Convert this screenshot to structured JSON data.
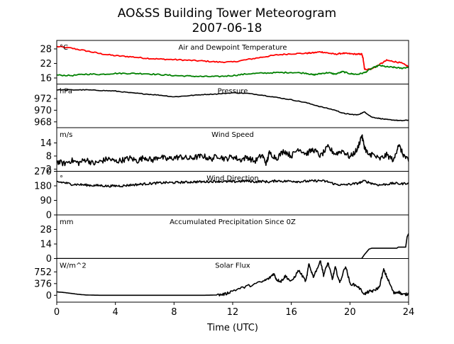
{
  "page": {
    "title_line1": "AO&SS Building Tower Meteorogram",
    "title_line2": "2007-06-18",
    "xlabel": "Time (UTC)"
  },
  "colors": {
    "temperature": "#ff0000",
    "dewpoint": "#008000",
    "line": "#000000",
    "axis": "#000000",
    "background": "#ffffff"
  },
  "chart_data": [
    {
      "type": "line",
      "title": "Air and Dewpoint Temperature",
      "unit": "°C",
      "xlim": [
        0,
        24
      ],
      "ylim": [
        13.5,
        31.5
      ],
      "yticks": [
        16,
        22,
        28
      ],
      "series": [
        {
          "color": "#ff0000",
          "x": [
            0,
            1,
            2,
            3,
            4,
            5,
            6,
            7,
            8,
            9,
            10,
            11,
            12,
            13,
            14,
            15,
            16,
            17,
            17.5,
            18,
            18.5,
            19,
            19.5,
            20,
            20.5,
            20.8,
            20.9,
            21.0,
            21.5,
            22,
            22.5,
            23,
            23.5,
            24
          ],
          "y": [
            29.0,
            28.3,
            27.2,
            26.0,
            25.2,
            24.8,
            24.2,
            23.8,
            23.6,
            23.3,
            23.0,
            22.6,
            22.6,
            23.6,
            24.6,
            25.5,
            26.0,
            26.2,
            26.4,
            26.8,
            26.3,
            25.8,
            26.2,
            26.0,
            25.8,
            25.9,
            24.0,
            19.5,
            19.8,
            21.5,
            23.3,
            22.8,
            22.2,
            20.7
          ]
        },
        {
          "color": "#008000",
          "x": [
            0,
            1,
            2,
            3,
            4,
            5,
            6,
            7,
            8,
            9,
            10,
            11,
            12,
            13,
            14,
            15,
            16,
            17,
            17.5,
            18,
            18.5,
            19,
            19.5,
            20,
            20.5,
            21,
            21.5,
            22,
            22.5,
            23,
            23.5,
            24
          ],
          "y": [
            17.2,
            17.0,
            17.6,
            17.5,
            17.9,
            17.9,
            17.8,
            17.4,
            17.0,
            16.8,
            16.6,
            16.6,
            17.0,
            17.7,
            18.0,
            18.2,
            18.3,
            18.0,
            17.3,
            17.8,
            18.2,
            17.6,
            18.6,
            17.8,
            17.5,
            18.2,
            20.0,
            21.2,
            20.6,
            20.4,
            20.0,
            20.5
          ]
        }
      ]
    },
    {
      "type": "line",
      "title": "Pressure",
      "unit": "hPa",
      "xlim": [
        0,
        24
      ],
      "ylim": [
        967.0,
        974.5
      ],
      "yticks": [
        968,
        970,
        972
      ],
      "series": [
        {
          "color": "#000000",
          "x": [
            0,
            1,
            2,
            3,
            4,
            5,
            6,
            7,
            8,
            9,
            10,
            11,
            12,
            13,
            14,
            15,
            16,
            17,
            18,
            19,
            19.5,
            20,
            20.5,
            21,
            21.5,
            22,
            22.5,
            23,
            23.5,
            24
          ],
          "y": [
            973.5,
            973.5,
            973.5,
            973.4,
            973.3,
            973.0,
            972.8,
            972.6,
            972.3,
            972.5,
            972.7,
            972.8,
            973.0,
            972.9,
            972.6,
            972.2,
            971.8,
            971.3,
            970.6,
            970.0,
            969.5,
            969.3,
            969.2,
            969.7,
            968.8,
            968.6,
            968.4,
            968.3,
            968.2,
            968.3
          ]
        }
      ]
    },
    {
      "type": "line",
      "title": "Wind Speed",
      "unit": "m/s",
      "xlim": [
        0,
        24
      ],
      "ylim": [
        1,
        21
      ],
      "yticks": [
        2,
        8,
        14
      ],
      "series": [
        {
          "color": "#000000",
          "x": [
            0,
            0.5,
            1,
            1.5,
            2,
            2.5,
            3,
            3.5,
            4,
            4.5,
            5,
            5.5,
            6,
            6.5,
            7,
            7.5,
            8,
            8.5,
            9,
            9.5,
            10,
            10.5,
            11,
            11.5,
            12,
            12.5,
            13,
            13.5,
            14,
            14.3,
            14.5,
            15,
            15.5,
            16,
            16.5,
            17,
            17.5,
            18,
            18.5,
            19,
            19.5,
            20,
            20.5,
            20.8,
            21,
            21.3,
            21.5,
            22,
            22.5,
            23,
            23.3,
            23.6,
            24
          ],
          "y": [
            5.5,
            4.5,
            6.0,
            4.8,
            6.5,
            4.5,
            5.5,
            6.8,
            5.5,
            6.2,
            7.0,
            5.8,
            7.5,
            6.0,
            7.8,
            6.5,
            7.2,
            7.6,
            6.8,
            7.5,
            8.0,
            6.5,
            8.2,
            6.6,
            7.8,
            6.2,
            7.5,
            5.5,
            8.5,
            4.5,
            9.5,
            7.0,
            10.5,
            8.0,
            11.5,
            9.0,
            11.0,
            8.0,
            12.0,
            9.0,
            10.5,
            7.5,
            11.0,
            17.5,
            12.0,
            8.0,
            9.0,
            6.5,
            8.5,
            6.0,
            13.5,
            9.0,
            5.5
          ]
        }
      ]
    },
    {
      "type": "line",
      "title": "Wind Direction",
      "unit": "°",
      "xlim": [
        0,
        24
      ],
      "ylim": [
        0,
        270
      ],
      "yticks": [
        0,
        90,
        180,
        270
      ],
      "series": [
        {
          "color": "#000000",
          "x": [
            0,
            0.5,
            1,
            1.5,
            2,
            2.5,
            3,
            3.5,
            4,
            4.5,
            5,
            5.5,
            6,
            6.5,
            7,
            7.5,
            8,
            8.5,
            9,
            9.5,
            10,
            10.5,
            11,
            11.5,
            12,
            12.5,
            13,
            13.5,
            14,
            14.5,
            15,
            15.5,
            16,
            16.5,
            17,
            17.5,
            18,
            18.5,
            19,
            19.5,
            20,
            20.5,
            21,
            21.5,
            22,
            22.5,
            23,
            23.5,
            24
          ],
          "y": [
            205,
            200,
            190,
            188,
            185,
            182,
            182,
            178,
            180,
            180,
            185,
            188,
            192,
            195,
            198,
            200,
            200,
            202,
            203,
            205,
            205,
            207,
            208,
            206,
            205,
            208,
            210,
            205,
            208,
            204,
            212,
            208,
            210,
            206,
            208,
            210,
            212,
            205,
            190,
            185,
            190,
            195,
            210,
            195,
            185,
            190,
            196,
            192,
            198
          ]
        }
      ]
    },
    {
      "type": "line",
      "title": "Accumulated Precipitation Since 0Z",
      "unit": "mm",
      "xlim": [
        0,
        24
      ],
      "ylim": [
        0,
        42
      ],
      "yticks": [
        0,
        14,
        28
      ],
      "series": [
        {
          "color": "#000000",
          "x": [
            0,
            20.8,
            21.0,
            21.3,
            21.5,
            22.0,
            22.5,
            23.0,
            23.2,
            23.3,
            23.8,
            23.9,
            24.0
          ],
          "y": [
            0,
            0,
            4,
            9,
            10,
            10,
            10,
            10,
            10,
            11,
            11,
            21,
            24
          ]
        }
      ]
    },
    {
      "type": "line",
      "title": "Solar Flux",
      "unit": "W/m^2",
      "xlim": [
        0,
        24
      ],
      "ylim": [
        -220,
        1180
      ],
      "yticks": [
        0,
        376,
        752
      ],
      "series": [
        {
          "color": "#000000",
          "x": [
            0,
            0.5,
            1,
            1.5,
            2,
            3,
            4,
            5,
            6,
            7,
            8,
            9,
            10,
            11,
            11.5,
            12,
            13,
            14,
            14.5,
            14.8,
            15.0,
            15.3,
            15.6,
            16,
            16.5,
            17,
            17.2,
            17.5,
            18.0,
            18.2,
            18.5,
            18.8,
            19.0,
            19.3,
            19.7,
            20.0,
            20.5,
            21.0,
            21.3,
            21.6,
            22.0,
            22.3,
            22.6,
            23.0,
            23.3,
            23.6,
            24.0
          ],
          "y": [
            110,
            90,
            60,
            30,
            10,
            0,
            0,
            0,
            0,
            0,
            0,
            0,
            0,
            10,
            40,
            150,
            290,
            430,
            550,
            700,
            500,
            450,
            620,
            430,
            800,
            450,
            1000,
            600,
            1100,
            650,
            1050,
            520,
            900,
            400,
            950,
            380,
            300,
            40,
            120,
            140,
            260,
            820,
            500,
            60,
            120,
            20,
            40
          ]
        }
      ]
    }
  ]
}
